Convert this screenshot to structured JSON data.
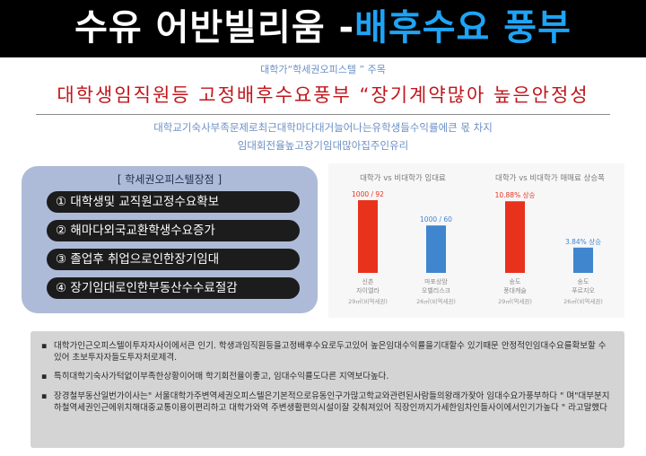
{
  "banner": {
    "title_white": "수유 어반빌리움 -",
    "title_blue": "배후수요 풍부",
    "bg": "#000000",
    "accent": "#1ea4f5"
  },
  "header": {
    "kicker": "대학가“학세권오피스텔 ” 주목",
    "headline": "대학생임직원등 고정배후수요풍부 “장기계약많아 높은안정성",
    "sub_line_1": "대학교기숙사부족문제로최근대학마다대거늘어나는유학생들수익률에큰 몫 차지",
    "sub_line_2": "임대회전율높고장기임대많아집주인유리"
  },
  "features": {
    "title": "[ 학세권오피스텔장점 ]",
    "items": [
      "① 대학생및 교직원고정수요확보",
      "② 해마다외국교환학생수요증가",
      "③ 졸업후 취업으로인한장기임대",
      "④ 장기임대로인한부동산수수료절감"
    ]
  },
  "chart_data": [
    {
      "type": "bar",
      "title": "대학가 vs 비대학가 임대료",
      "categories": [
        "신촌 자이엘라",
        "마포상암 오벨리스크"
      ],
      "category_sublabels": [
        "29㎡(비역세권)",
        "26㎡(비역세권)"
      ],
      "values": [
        92,
        60
      ],
      "value_labels": [
        "1000 / 92",
        "1000 / 60"
      ],
      "colors": [
        "#e8321c",
        "#3f86cf"
      ],
      "ylim": [
        0,
        100
      ]
    },
    {
      "type": "bar",
      "title": "대학가 vs 비대학가 매매료 상승폭",
      "categories": [
        "송도 풍대캐슬",
        "송도 푸르지오"
      ],
      "category_sublabels": [
        "29㎡(역세권)",
        "26㎡(비역세권)"
      ],
      "values": [
        10.88,
        3.84
      ],
      "value_labels": [
        "10.88% 상승",
        "3.84% 상승"
      ],
      "colors": [
        "#e8321c",
        "#3f86cf"
      ],
      "ylim": [
        0,
        12
      ]
    }
  ],
  "notes": {
    "bullet": "▪",
    "items": [
      "대학가인근오피스텔이투자자사이에서큰 인기. 학생과임직원등을고정배후수요로두고있어 높은임대수익률을기대할수 있기때문 안정적인임대수요를확보할 수 있어 초보투자자들도투자처로제격.",
      "특히대학기숙사가턱없이부족한상황이어매 학기회전율이좋고, 임대수익률도다른 지역보다높다.",
      "장경철부동산일번가이사는\" 서울대학가주변역세권오피스텔은기본적으로유동인구가많고학교와관련된사람들의왕래가잦아 임대수요가풍부하다 \" 며\"대부분지하철역세권인근에위치해대중교통이용이편리하고 대학가와역 주변생활편의시설이잘 갖춰져있어 직장인까지가세한임차인들사이에서인기가높다 \" 라고말했다"
    ]
  }
}
